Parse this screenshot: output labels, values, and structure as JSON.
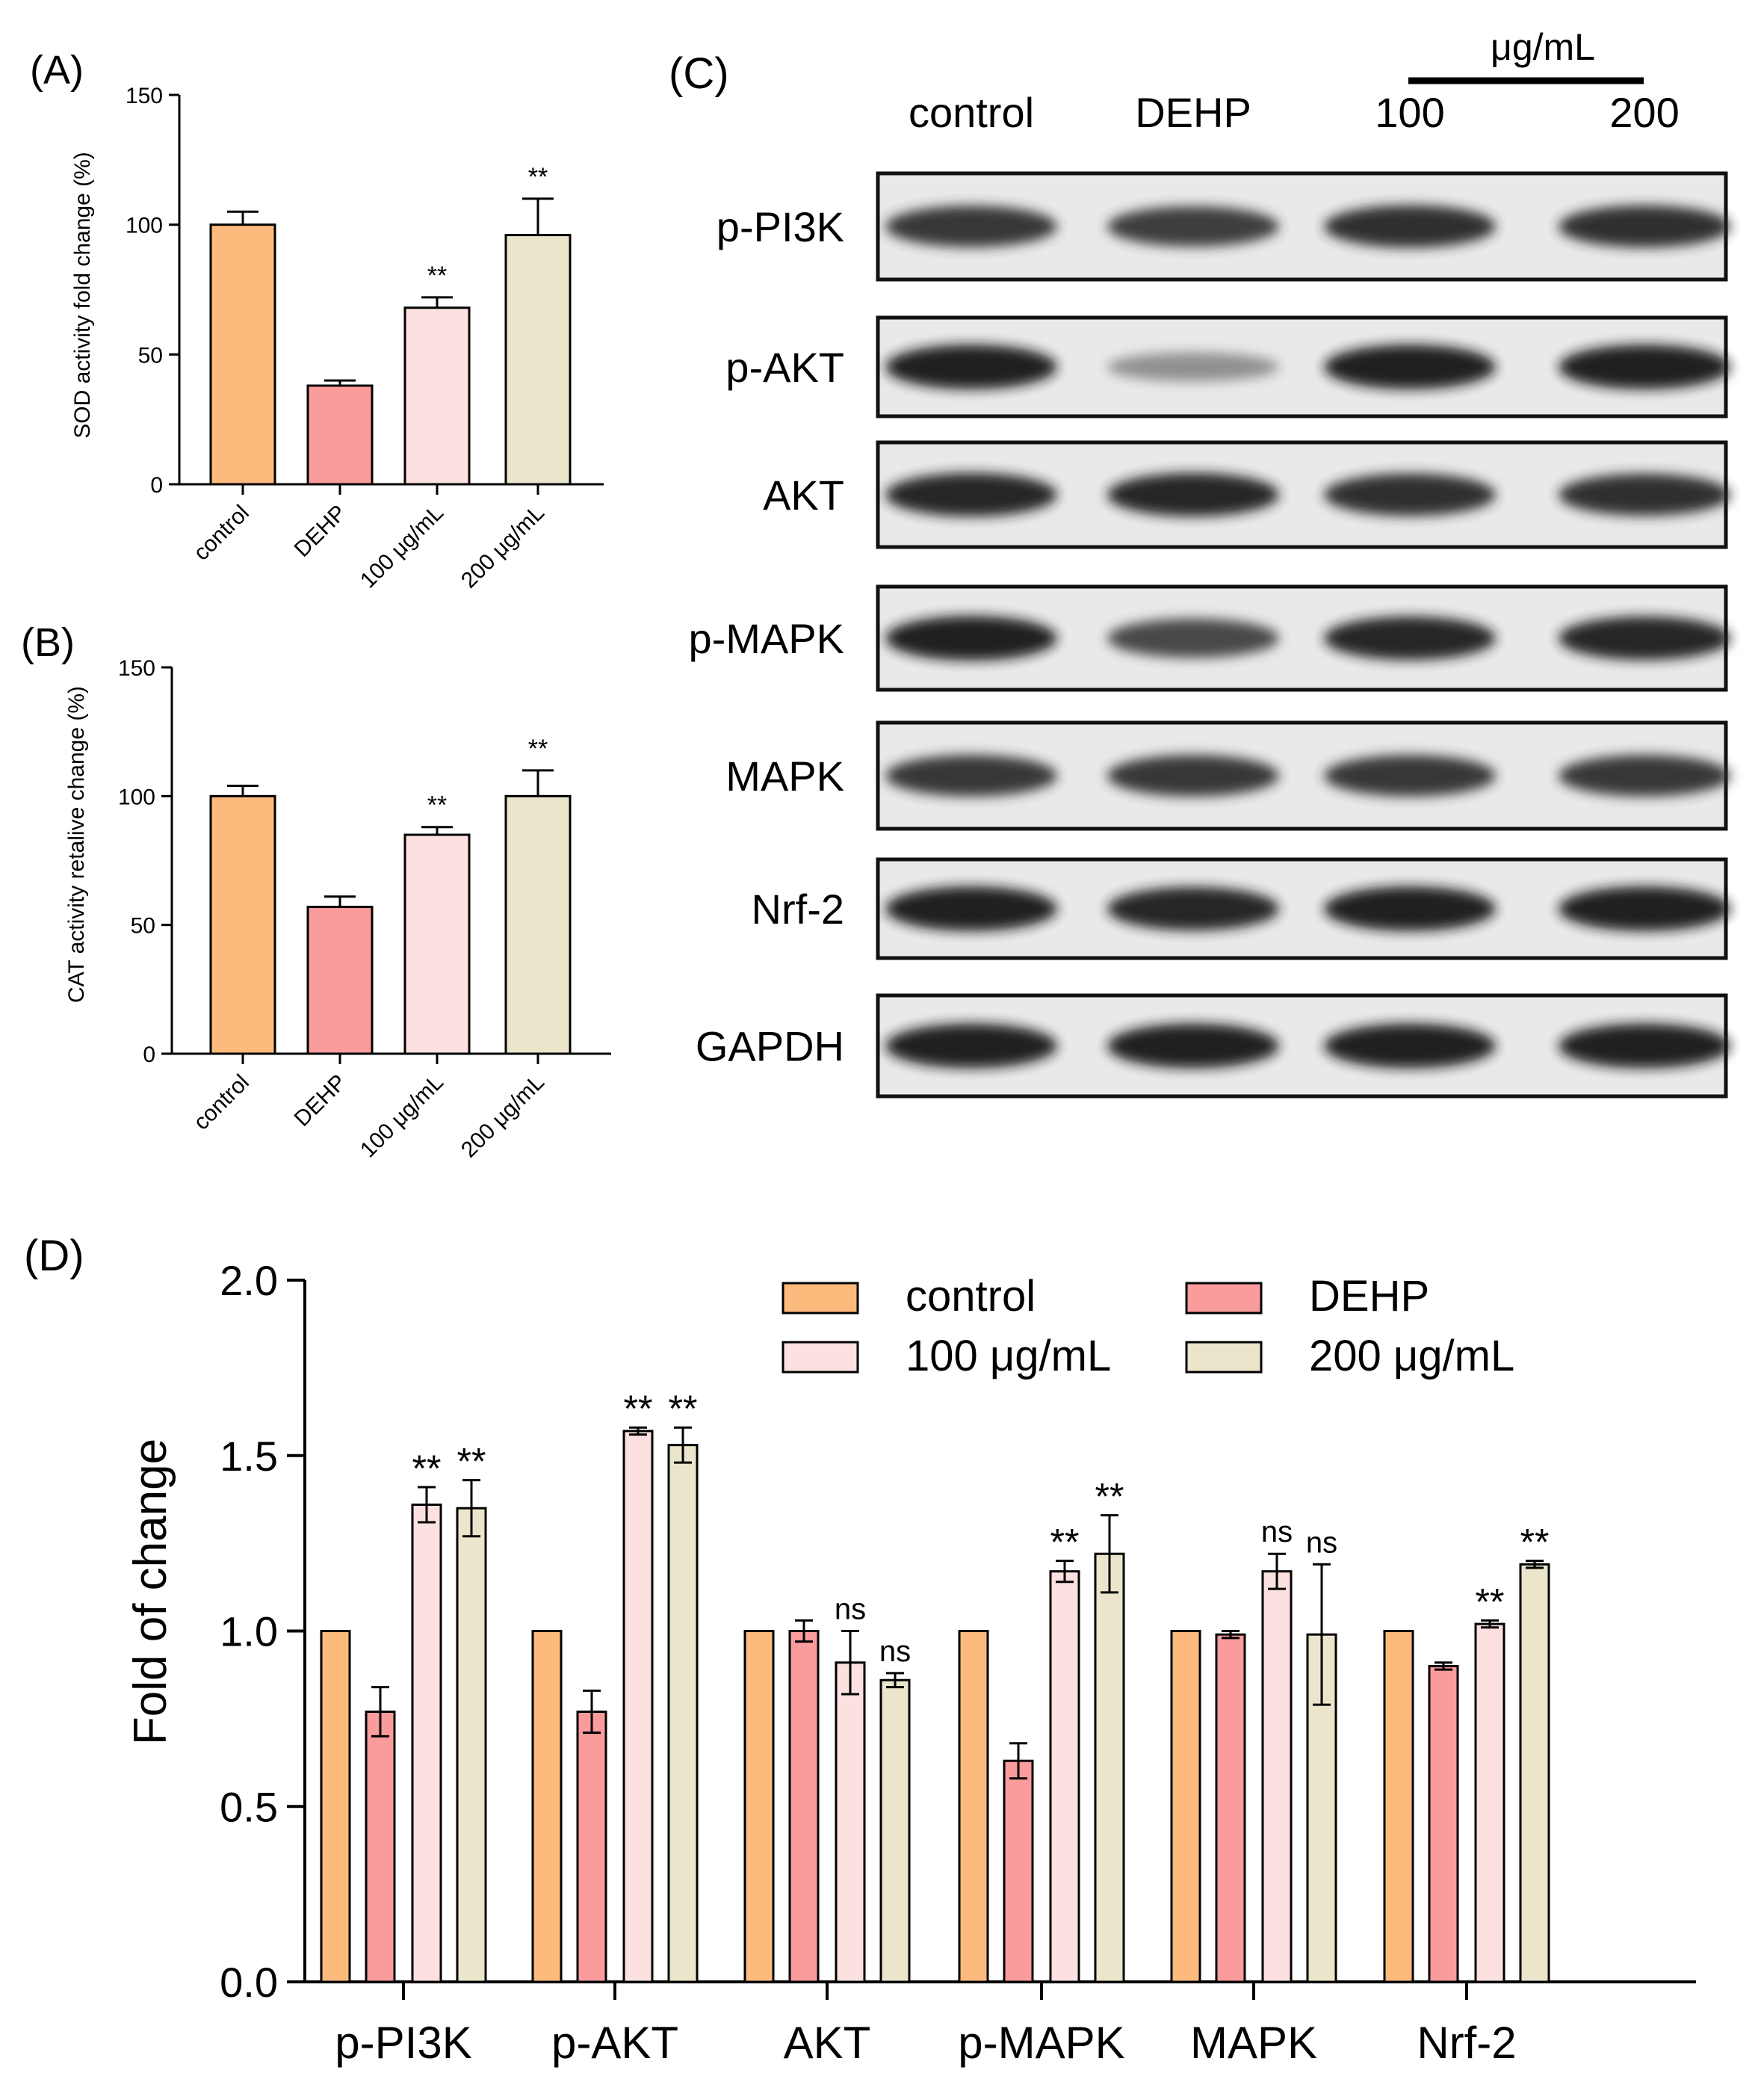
{
  "colors": {
    "control": "#FDBA7D",
    "dehp": "#FA9B9C",
    "low": "#FDE1E1",
    "high": "#EBE6CB",
    "ink": "#000000"
  },
  "chart_data": [
    {
      "id": "A",
      "panel_label": "(A)",
      "type": "bar",
      "ylabel": "SOD activity fold change (%)",
      "ylim": [
        0,
        150
      ],
      "yticks": [
        0,
        50,
        100,
        150
      ],
      "categories": [
        "control",
        "DEHP",
        "100 μg/mL",
        "200 μg/mL"
      ],
      "values": [
        100,
        38,
        68,
        96
      ],
      "errors": [
        5,
        2,
        4,
        14
      ],
      "sig": [
        "",
        "",
        "**",
        "**"
      ]
    },
    {
      "id": "B",
      "panel_label": "(B)",
      "type": "bar",
      "ylabel": "CAT activity retalive change (%)",
      "ylim": [
        0,
        150
      ],
      "yticks": [
        0,
        50,
        100,
        150
      ],
      "categories": [
        "control",
        "DEHP",
        "100 μg/mL",
        "200 μg/mL"
      ],
      "values": [
        100,
        57,
        85,
        100
      ],
      "errors": [
        4,
        4,
        3,
        10
      ],
      "sig": [
        "",
        "",
        "**",
        "**"
      ]
    },
    {
      "id": "D",
      "panel_label": "(D)",
      "type": "bar",
      "ylabel": "Fold of change",
      "ylim": [
        0,
        2.0
      ],
      "yticks": [
        "0.0",
        "0.5",
        "1.0",
        "1.5",
        "2.0"
      ],
      "categories": [
        "p-PI3K",
        "p-AKT",
        "AKT",
        "p-MAPK",
        "MAPK",
        "Nrf-2"
      ],
      "series": [
        {
          "name": "control",
          "values": [
            1.0,
            1.0,
            1.0,
            1.0,
            1.0,
            1.0
          ],
          "errors": [
            0,
            0,
            0,
            0,
            0,
            0
          ],
          "sig": [
            "",
            "",
            "",
            "",
            "",
            ""
          ]
        },
        {
          "name": "DEHP",
          "values": [
            0.77,
            0.77,
            1.0,
            0.63,
            0.99,
            0.9
          ],
          "errors": [
            0.07,
            0.06,
            0.03,
            0.05,
            0.01,
            0.01
          ],
          "sig": [
            "",
            "",
            "",
            "",
            "",
            ""
          ]
        },
        {
          "name": "100 μg/mL",
          "values": [
            1.36,
            1.57,
            0.91,
            1.17,
            1.17,
            1.02
          ],
          "errors": [
            0.05,
            0.01,
            0.09,
            0.03,
            0.05,
            0.01
          ],
          "sig": [
            "**",
            "**",
            "ns",
            "**",
            "ns",
            "**"
          ]
        },
        {
          "name": "200 μg/mL",
          "values": [
            1.35,
            1.53,
            0.86,
            1.22,
            0.99,
            1.19
          ],
          "errors": [
            0.08,
            0.05,
            0.02,
            0.11,
            0.2,
            0.01
          ],
          "sig": [
            "**",
            "**",
            "ns",
            "**",
            "ns",
            "**"
          ]
        }
      ]
    }
  ],
  "blot": {
    "panel_label": "(C)",
    "unit": "μg/mL",
    "lanes": [
      "control",
      "DEHP",
      "100",
      "200"
    ],
    "rows": [
      {
        "label": "p-PI3K",
        "intensity": [
          0.85,
          0.8,
          0.9,
          0.88
        ]
      },
      {
        "label": "p-AKT",
        "intensity": [
          1.0,
          0.3,
          1.0,
          1.0
        ]
      },
      {
        "label": "AKT",
        "intensity": [
          0.95,
          0.95,
          0.9,
          0.88
        ]
      },
      {
        "label": "p-MAPK",
        "intensity": [
          1.0,
          0.75,
          0.95,
          0.95
        ]
      },
      {
        "label": "MAPK",
        "intensity": [
          0.85,
          0.85,
          0.85,
          0.85
        ]
      },
      {
        "label": "Nrf-2",
        "intensity": [
          1.0,
          0.95,
          1.0,
          1.0
        ]
      },
      {
        "label": "GAPDH",
        "intensity": [
          1.0,
          1.0,
          1.0,
          1.0
        ]
      }
    ]
  }
}
